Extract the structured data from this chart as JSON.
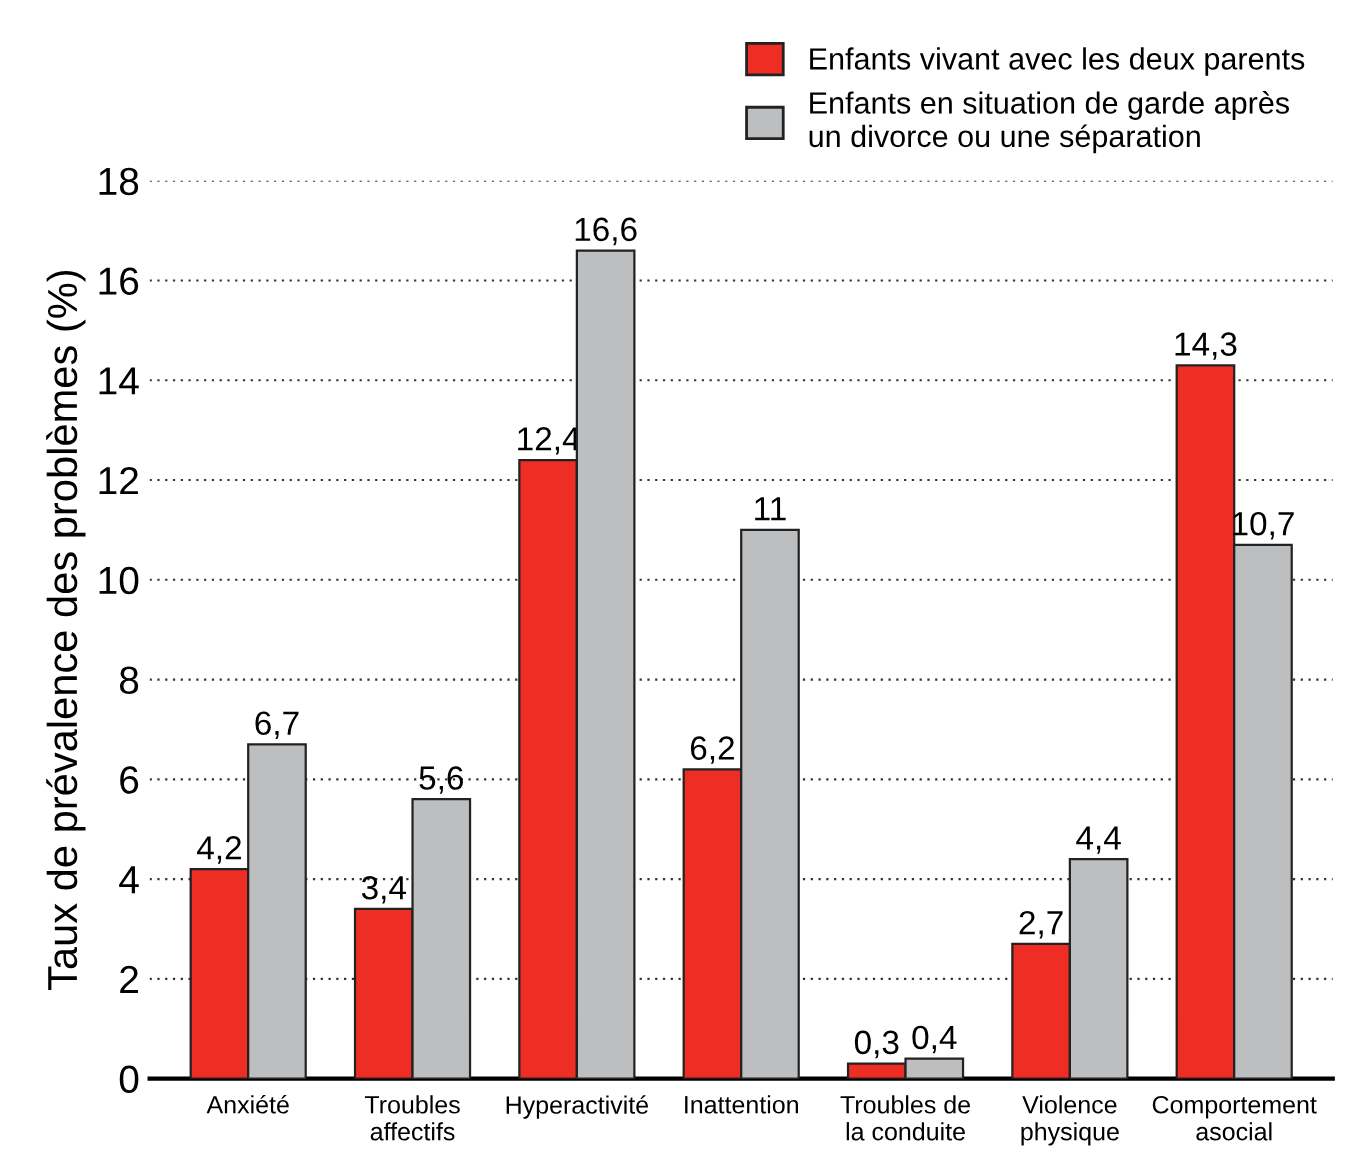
{
  "chart_data": {
    "type": "bar",
    "ylabel": "Taux de prévalence des problèmes (%)",
    "categories": [
      "Anxiété",
      "Troubles\naffectifs",
      "Hyperactivité",
      "Inattention",
      "Troubles de\nla conduite",
      "Violence\nphysique",
      "Comportement\nasocial"
    ],
    "series": [
      {
        "name": "Enfants vivant avec les deux parents",
        "color": "#ee2e24",
        "values": [
          4.2,
          3.4,
          12.4,
          6.2,
          0.3,
          2.7,
          14.3
        ],
        "value_labels": [
          "4,2",
          "3,4",
          "12,4",
          "6,2",
          "0,3",
          "2,7",
          "14,3"
        ]
      },
      {
        "name": "Enfants en situation de garde après\nun divorce ou une séparation",
        "color": "#bcbec0",
        "values": [
          6.7,
          5.6,
          16.6,
          11,
          0.4,
          4.4,
          10.7
        ],
        "value_labels": [
          "6,7",
          "5,6",
          "16,6",
          "11",
          "0,4",
          "4,4",
          "10,7"
        ]
      }
    ],
    "ylim": [
      0,
      18
    ],
    "yticks": [
      0,
      2,
      4,
      6,
      8,
      10,
      12,
      14,
      16,
      18
    ],
    "grid": "y",
    "legend": "top right"
  }
}
